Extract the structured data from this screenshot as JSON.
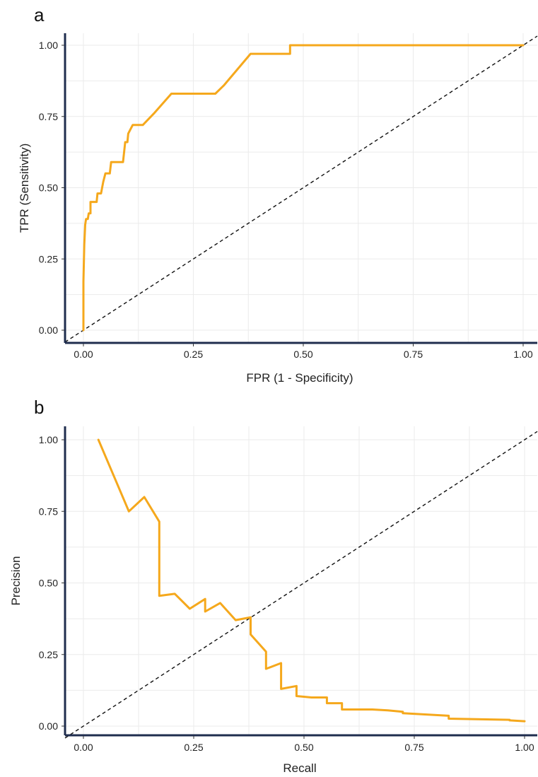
{
  "accent_color": "#f5a81c",
  "chart_data": [
    {
      "panel_label": "a",
      "type": "line",
      "xlabel": "FPR (1 - Specificity)",
      "ylabel": "TPR (Sensitivity)",
      "xlim": [
        0,
        1
      ],
      "ylim": [
        0,
        1
      ],
      "xticks": [
        "0.00",
        "0.25",
        "0.50",
        "0.75",
        "1.00"
      ],
      "yticks": [
        "0.00",
        "0.25",
        "0.50",
        "0.75",
        "1.00"
      ],
      "grid": true,
      "reference_line": "diagonal-dashed",
      "series": [
        {
          "color": "#f5a81c",
          "x": [
            0.0,
            0.0,
            0.002,
            0.004,
            0.006,
            0.01,
            0.012,
            0.016,
            0.016,
            0.02,
            0.022,
            0.024,
            0.03,
            0.032,
            0.04,
            0.045,
            0.05,
            0.055,
            0.06,
            0.063,
            0.07,
            0.08,
            0.09,
            0.095,
            0.1,
            0.102,
            0.112,
            0.115,
            0.13,
            0.135,
            0.16,
            0.2,
            0.3,
            0.32,
            0.38,
            0.47,
            0.47,
            1.0
          ],
          "y": [
            0.0,
            0.17,
            0.3,
            0.37,
            0.39,
            0.39,
            0.41,
            0.41,
            0.45,
            0.45,
            0.45,
            0.45,
            0.45,
            0.48,
            0.48,
            0.52,
            0.55,
            0.55,
            0.55,
            0.59,
            0.59,
            0.59,
            0.59,
            0.66,
            0.66,
            0.69,
            0.72,
            0.72,
            0.72,
            0.72,
            0.76,
            0.83,
            0.83,
            0.86,
            0.97,
            0.97,
            1.0,
            1.0
          ]
        }
      ]
    },
    {
      "panel_label": "b",
      "type": "line",
      "xlabel": "Recall",
      "ylabel": "Precision",
      "xlim": [
        0,
        1
      ],
      "ylim": [
        0,
        1
      ],
      "xticks": [
        "0.00",
        "0.25",
        "0.50",
        "0.75",
        "1.00"
      ],
      "yticks": [
        "0.00",
        "0.25",
        "0.50",
        "0.75",
        "1.00"
      ],
      "grid": true,
      "reference_line": "diagonal-dashed",
      "series": [
        {
          "color": "#f5a81c",
          "x": [
            0.034,
            0.103,
            0.138,
            0.172,
            0.172,
            0.207,
            0.241,
            0.276,
            0.276,
            0.31,
            0.345,
            0.379,
            0.379,
            0.414,
            0.414,
            0.448,
            0.448,
            0.483,
            0.483,
            0.517,
            0.552,
            0.552,
            0.586,
            0.586,
            0.655,
            0.69,
            0.724,
            0.724,
            0.828,
            0.828,
            0.966,
            0.966,
            1.0
          ],
          "y": [
            1.0,
            0.75,
            0.8,
            0.714,
            0.455,
            0.462,
            0.41,
            0.444,
            0.4,
            0.43,
            0.37,
            0.38,
            0.32,
            0.26,
            0.2,
            0.22,
            0.13,
            0.14,
            0.105,
            0.1,
            0.1,
            0.08,
            0.08,
            0.058,
            0.058,
            0.055,
            0.05,
            0.045,
            0.036,
            0.026,
            0.022,
            0.02,
            0.017
          ]
        }
      ]
    }
  ]
}
